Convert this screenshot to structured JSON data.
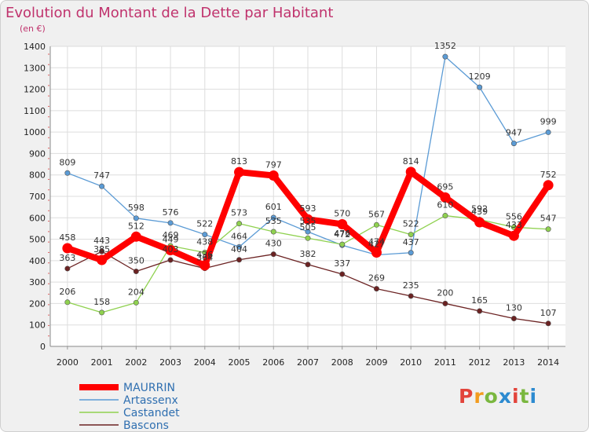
{
  "title": "Evolution du Montant de la Dette par Habitant",
  "subtitle": "(en €)",
  "logo": {
    "text": "Proxiti",
    "colors": [
      "#e2443b",
      "#f29c1f",
      "#7ab73f",
      "#2c8ad0",
      "#e2443b",
      "#7ab73f",
      "#2c8ad0"
    ]
  },
  "chart_data": {
    "type": "line",
    "x": [
      "2000",
      "2001",
      "2002",
      "2003",
      "2004",
      "2005",
      "2006",
      "2007",
      "2008",
      "2009",
      "2010",
      "2011",
      "2012",
      "2013",
      "2014"
    ],
    "yticks": [
      "0",
      "100",
      "200",
      "300",
      "400",
      "500",
      "600",
      "700",
      "800",
      "900",
      "1000",
      "1100",
      "1200",
      "1300",
      "1400"
    ],
    "ylim": [
      0,
      1400
    ],
    "grid": true,
    "legend_position": "bottom-left",
    "series": [
      {
        "name": "MAURRIN",
        "color": "#ff0000",
        "values": [
          458,
          403,
          512,
          449,
          378,
          813,
          797,
          593,
          570,
          438,
          814,
          695,
          579,
          516,
          752
        ],
        "labels": [
          "458",
          "",
          "512",
          "",
          "",
          "813",
          "797",
          "593",
          "570",
          "",
          "814",
          "695",
          "",
          "",
          "752"
        ]
      },
      {
        "name": "Artassenx",
        "color": "#5b9bd5",
        "values": [
          809,
          747,
          598,
          576,
          522,
          464,
          601,
          535,
          472,
          427,
          437,
          1352,
          1209,
          947,
          999
        ],
        "labels": [
          "809",
          "747",
          "598",
          "576",
          "522",
          "464",
          "601",
          "535",
          "472",
          "427",
          "437",
          "1352",
          "1209",
          "947",
          "999"
        ]
      },
      {
        "name": "Castandet",
        "color": "#8fd14f",
        "values": [
          206,
          158,
          204,
          469,
          438,
          573,
          535,
          505,
          476,
          567,
          522,
          610,
          592,
          556,
          547
        ],
        "labels": [
          "206",
          "158",
          "204",
          "469",
          "438",
          "573",
          "535",
          "505",
          "476",
          "567",
          "522",
          "610",
          "592",
          "556",
          "547"
        ]
      },
      {
        "name": "Bascons",
        "color": "#6b2222",
        "values": [
          363,
          443,
          350,
          403,
          364,
          404,
          430,
          382,
          337,
          269,
          235,
          200,
          165,
          130,
          107
        ],
        "labels": [
          "363",
          "443",
          "350",
          "403",
          "364",
          "404",
          "430",
          "382",
          "337",
          "269",
          "235",
          "200",
          "165",
          "130",
          "107"
        ]
      }
    ],
    "overlap_labels": [
      "385",
      "449",
      "436",
      "474",
      "439",
      "433"
    ]
  }
}
